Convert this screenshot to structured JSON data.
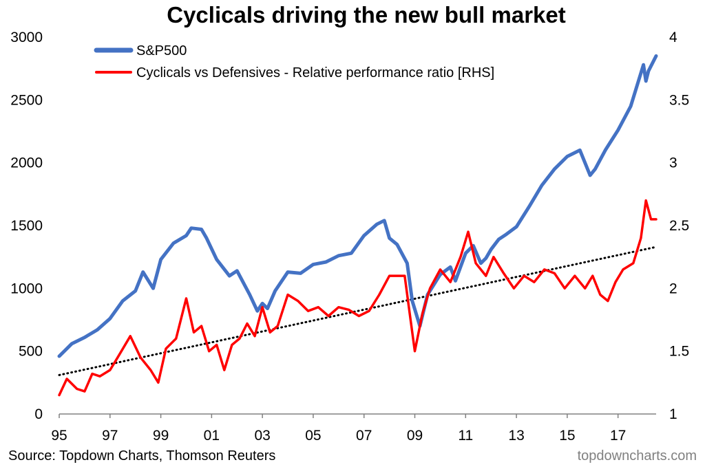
{
  "chart_data": {
    "type": "line",
    "title": "Cyclicals driving the new bull market",
    "x_tick_labels": [
      "95",
      "97",
      "99",
      "01",
      "03",
      "05",
      "07",
      "09",
      "11",
      "13",
      "15",
      "17"
    ],
    "x_range": [
      1995.0,
      2018.5
    ],
    "y_left": {
      "range": [
        0,
        3000
      ],
      "ticks": [
        "0",
        "500",
        "1000",
        "1500",
        "2000",
        "2500",
        "3000"
      ]
    },
    "y_right": {
      "range": [
        1,
        4
      ],
      "ticks": [
        "1",
        "1.5",
        "2",
        "2.5",
        "3",
        "3.5",
        "4"
      ]
    },
    "grid": false,
    "legend_position": "top-left",
    "series": [
      {
        "name": "S&P500",
        "axis": "left",
        "color": "#4472C4",
        "x": [
          1995.0,
          1995.5,
          1996.0,
          1996.5,
          1997.0,
          1997.5,
          1998.0,
          1998.3,
          1998.7,
          1999.0,
          1999.5,
          2000.0,
          2000.2,
          2000.6,
          2000.8,
          2001.2,
          2001.7,
          2002.0,
          2002.5,
          2002.8,
          2003.0,
          2003.2,
          2003.5,
          2004.0,
          2004.5,
          2005.0,
          2005.5,
          2006.0,
          2006.5,
          2007.0,
          2007.5,
          2007.8,
          2008.0,
          2008.3,
          2008.7,
          2008.9,
          2009.2,
          2009.5,
          2010.0,
          2010.4,
          2010.6,
          2011.0,
          2011.3,
          2011.6,
          2011.8,
          2012.0,
          2012.3,
          2012.6,
          2013.0,
          2013.5,
          2014.0,
          2014.5,
          2015.0,
          2015.5,
          2015.7,
          2015.9,
          2016.1,
          2016.5,
          2017.0,
          2017.5,
          2018.0,
          2018.1,
          2018.2,
          2018.5
        ],
        "values": [
          460,
          560,
          610,
          670,
          760,
          900,
          980,
          1130,
          1000,
          1230,
          1360,
          1420,
          1480,
          1470,
          1400,
          1230,
          1100,
          1140,
          950,
          820,
          880,
          840,
          980,
          1130,
          1120,
          1190,
          1210,
          1260,
          1280,
          1420,
          1510,
          1540,
          1400,
          1350,
          1200,
          900,
          700,
          950,
          1110,
          1170,
          1060,
          1280,
          1340,
          1200,
          1240,
          1310,
          1390,
          1430,
          1490,
          1650,
          1820,
          1950,
          2050,
          2100,
          2000,
          1900,
          1950,
          2100,
          2260,
          2450,
          2780,
          2650,
          2730,
          2850
        ]
      },
      {
        "name": "Cyclicals vs Defensives - Relative performance ratio [RHS]",
        "axis": "right",
        "color": "#FF0000",
        "x": [
          1995.0,
          1995.3,
          1995.7,
          1996.0,
          1996.3,
          1996.6,
          1997.0,
          1997.3,
          1997.8,
          1998.2,
          1998.6,
          1998.9,
          1999.2,
          1999.6,
          2000.0,
          2000.3,
          2000.6,
          2000.9,
          2001.2,
          2001.5,
          2001.8,
          2002.1,
          2002.4,
          2002.7,
          2003.0,
          2003.3,
          2003.6,
          2004.0,
          2004.4,
          2004.8,
          2005.2,
          2005.6,
          2006.0,
          2006.4,
          2006.8,
          2007.2,
          2007.6,
          2008.0,
          2008.3,
          2008.6,
          2008.8,
          2009.0,
          2009.3,
          2009.6,
          2010.0,
          2010.4,
          2010.8,
          2011.1,
          2011.4,
          2011.8,
          2012.1,
          2012.5,
          2012.9,
          2013.3,
          2013.7,
          2014.1,
          2014.5,
          2014.9,
          2015.3,
          2015.7,
          2016.0,
          2016.3,
          2016.6,
          2016.9,
          2017.2,
          2017.6,
          2017.9,
          2018.1,
          2018.3,
          2018.5
        ],
        "values": [
          1.15,
          1.28,
          1.2,
          1.18,
          1.32,
          1.3,
          1.35,
          1.45,
          1.62,
          1.45,
          1.35,
          1.25,
          1.52,
          1.6,
          1.92,
          1.65,
          1.7,
          1.5,
          1.55,
          1.35,
          1.55,
          1.6,
          1.72,
          1.62,
          1.85,
          1.65,
          1.7,
          1.95,
          1.9,
          1.82,
          1.85,
          1.78,
          1.85,
          1.83,
          1.78,
          1.82,
          1.95,
          2.1,
          2.1,
          2.1,
          1.8,
          1.5,
          1.8,
          2.0,
          2.15,
          2.05,
          2.25,
          2.45,
          2.2,
          2.1,
          2.25,
          2.12,
          2.0,
          2.1,
          2.05,
          2.15,
          2.12,
          2.0,
          2.1,
          2.0,
          2.1,
          1.95,
          1.9,
          2.05,
          2.15,
          2.2,
          2.4,
          2.7,
          2.55,
          2.55
        ]
      },
      {
        "name": "",
        "axis": "right",
        "color": "#000000",
        "style": "dotted-trend",
        "x": [
          1995.0,
          2018.5
        ],
        "values": [
          1.31,
          2.33
        ]
      }
    ]
  },
  "footer": {
    "source": "Source: Topdown Charts, Thomson Reuters",
    "watermark": "topdowncharts.com"
  }
}
